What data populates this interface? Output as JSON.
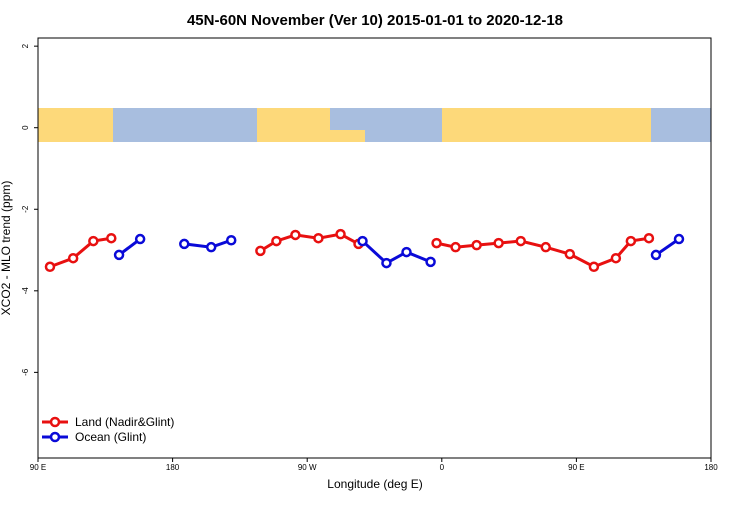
{
  "chart_data": {
    "type": "line",
    "title": "45N-60N November (Ver 10)   2015-01-01 to 2020-12-18",
    "x_label": "Longitude (deg E)",
    "y_label": "XCO2 - MLO trend (ppm)",
    "xlim": [
      90,
      540
    ],
    "ylim": [
      -8.1,
      2.2
    ],
    "xticks": [
      {
        "value": 90,
        "label": "90 E"
      },
      180,
      {
        "value": 270,
        "label": "90 W"
      },
      {
        "value": 360,
        "label": "0"
      },
      {
        "value": 450,
        "label": "90 E"
      },
      {
        "value": 540,
        "label": "180"
      }
    ],
    "yticks": [
      2,
      0,
      -2,
      -4,
      -6
    ],
    "legend": "bottom-left",
    "series": [
      {
        "name": "Land (Nadir&Glint)",
        "color": "#e81010",
        "x": [
          98,
          113.5,
          127,
          139,
          null,
          238.7,
          249.4,
          262.1,
          277.5,
          292.3,
          304.3,
          null,
          356.5,
          369.2,
          383.3,
          398,
          412.8,
          429.5,
          445.6,
          461.7,
          476.4,
          486.4,
          498.5
        ],
        "values": [
          -3.41,
          -3.2,
          -2.78,
          -2.71,
          null,
          -3.02,
          -2.78,
          -2.63,
          -2.71,
          -2.61,
          -2.85,
          null,
          -2.83,
          -2.93,
          -2.88,
          -2.83,
          -2.78,
          -2.93,
          -3.1,
          -3.41,
          -3.2,
          -2.78,
          -2.71
        ]
      },
      {
        "name": "Ocean (Glint)",
        "color": "#0a0ad8",
        "x": [
          144.2,
          158.3,
          null,
          187.8,
          205.8,
          219.2,
          null,
          307,
          323,
          336.4,
          352.5,
          null,
          503.2,
          518.6
        ],
        "values": [
          -3.12,
          -2.73,
          null,
          -2.85,
          -2.93,
          -2.76,
          null,
          -2.78,
          -3.32,
          -3.05,
          -3.29,
          null,
          -3.12,
          -2.73
        ]
      }
    ]
  }
}
